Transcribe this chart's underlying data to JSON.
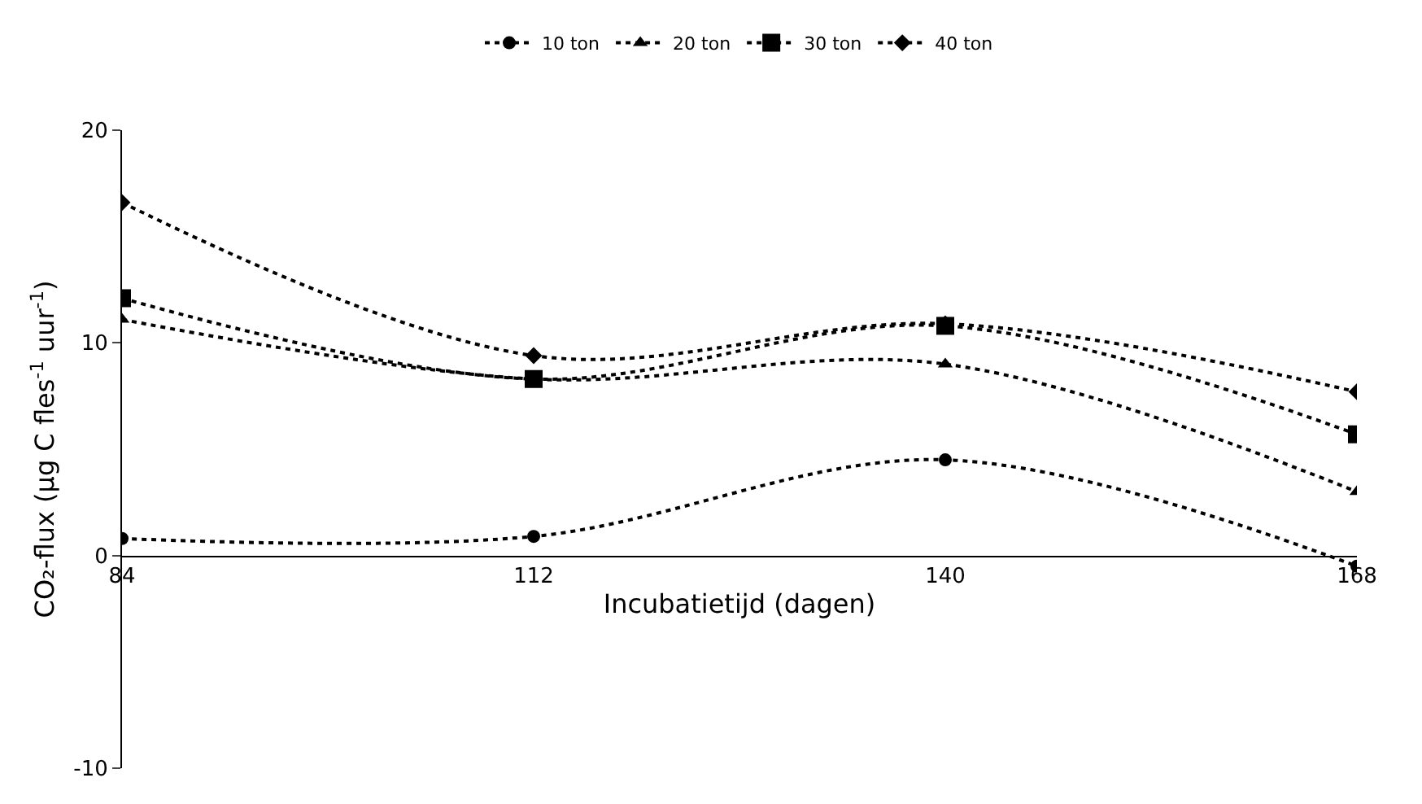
{
  "chart_data": {
    "type": "line",
    "xlabel": "Incubatietijd (dagen)",
    "ylabel": "CO₂-flux (µg C fles$^{-1}$ uur$^{-1}$)",
    "x": [
      84,
      112,
      140,
      168
    ],
    "xlim": [
      84,
      168
    ],
    "xticks": [
      84,
      112,
      140,
      168
    ],
    "ylim": [
      -10,
      20
    ],
    "yticks": [
      -10,
      0,
      10,
      20
    ],
    "grid": false,
    "legend": "top",
    "line_style": "dotted",
    "series": [
      {
        "name": "10 ton",
        "color": "#000000",
        "marker": "circle",
        "values": [
          0.8,
          0.9,
          4.5,
          -0.5
        ]
      },
      {
        "name": "20 ton",
        "color": "#000000",
        "marker": "triangle",
        "values": [
          11.1,
          8.3,
          9.0,
          3.0
        ]
      },
      {
        "name": "30 ton",
        "color": "#000000",
        "marker": "square",
        "values": [
          12.1,
          8.3,
          10.8,
          5.7
        ]
      },
      {
        "name": "40 ton",
        "color": "#000000",
        "marker": "diamond",
        "values": [
          16.6,
          9.4,
          10.9,
          7.7
        ]
      }
    ]
  }
}
